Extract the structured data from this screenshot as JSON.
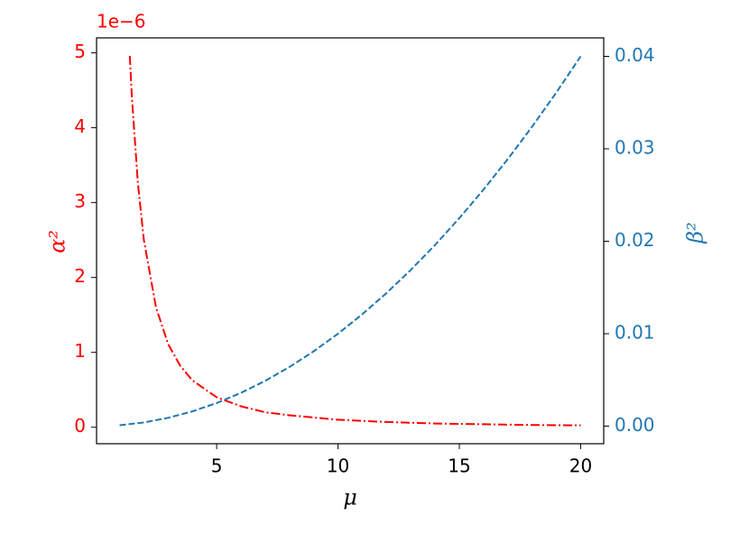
{
  "chart_data": {
    "type": "line",
    "xlabel": "μ",
    "ylabel": "α²",
    "y2label": "β²",
    "y_offset_text": "1e−6",
    "xlim": [
      0.05,
      20.95
    ],
    "xticks": [
      5,
      10,
      15,
      20
    ],
    "ylim": [
      -0.22,
      5.2
    ],
    "yticks": [
      0,
      1,
      2,
      3,
      4,
      5
    ],
    "ycolor": "#ff0000",
    "y2lim": [
      -0.0019,
      0.042
    ],
    "y2ticks": [
      {
        "value": 0,
        "label": "0.00"
      },
      {
        "value": 0.01,
        "label": "0.01"
      },
      {
        "value": 0.02,
        "label": "0.02"
      },
      {
        "value": 0.03,
        "label": "0.03"
      },
      {
        "value": 0.04,
        "label": "0.04"
      }
    ],
    "y2color": "#1f77b4",
    "series": [
      {
        "color": "#ff0000",
        "style": "dashdot",
        "axis": "y",
        "x": [
          1.42,
          1.5,
          1.75,
          2,
          2.5,
          3,
          3.5,
          4,
          5,
          6,
          7,
          8,
          10,
          12,
          14,
          16,
          18,
          20
        ],
        "values": [
          4.96,
          4.44,
          3.27,
          2.5,
          1.6,
          1.11,
          0.82,
          0.625,
          0.4,
          0.28,
          0.2,
          0.16,
          0.1,
          0.07,
          0.05,
          0.04,
          0.03,
          0.025
        ]
      },
      {
        "color": "#1f77b4",
        "style": "dashed",
        "axis": "y2",
        "x": [
          1,
          2,
          3,
          4,
          5,
          6,
          7,
          8,
          9,
          10,
          11,
          12,
          13,
          14,
          15,
          16,
          17,
          18,
          19,
          20
        ],
        "values": [
          0.0001,
          0.0004,
          0.0009,
          0.0016,
          0.0025,
          0.0036,
          0.0049,
          0.0064,
          0.0081,
          0.01,
          0.0121,
          0.0144,
          0.0169,
          0.0196,
          0.0225,
          0.0256,
          0.0289,
          0.0324,
          0.0361,
          0.04
        ]
      }
    ]
  }
}
